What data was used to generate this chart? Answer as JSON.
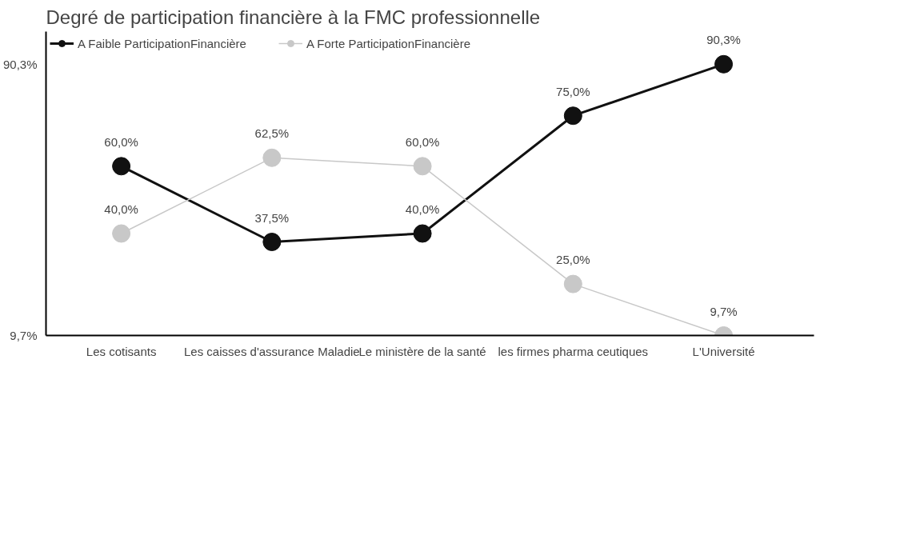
{
  "chart_data": {
    "type": "line",
    "title": "Degré de participation financière à la FMC professionnelle",
    "categories": [
      "Les cotisants",
      "Les caisses d'assurance Maladie",
      "Le ministère de la santé",
      "les firmes pharma ceutiques",
      "L'Université"
    ],
    "series": [
      {
        "name": "A Faible ParticipationFinancière",
        "color": "#111111",
        "values": [
          60.0,
          37.5,
          40.0,
          75.0,
          90.3
        ],
        "value_labels": [
          "60,0%",
          "37,5%",
          "40,0%",
          "75,0%",
          "90,3%"
        ]
      },
      {
        "name": "A Forte ParticipationFinancière",
        "color": "#c8c8c8",
        "values": [
          40.0,
          62.5,
          60.0,
          25.0,
          9.7
        ],
        "value_labels": [
          "40,0%",
          "62,5%",
          "60,0%",
          "25,0%",
          "9,7%"
        ]
      }
    ],
    "ylim": [
      9.7,
      100
    ],
    "yticks": [
      {
        "value": 9.7,
        "label": "9,7%"
      },
      {
        "value": 90.3,
        "label": "90,3%"
      }
    ],
    "grid": false,
    "legend": "top left",
    "marker": "circle",
    "line_style": "solid"
  }
}
